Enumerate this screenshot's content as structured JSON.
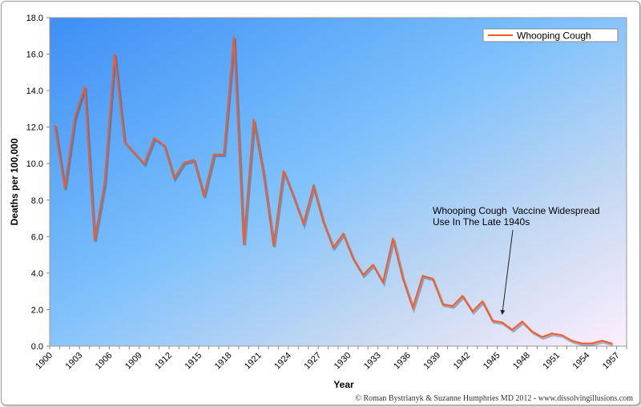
{
  "chart_data": {
    "type": "line",
    "title": "",
    "xlabel": "Year",
    "ylabel": "Deaths per 100,000",
    "ylim": [
      0,
      18
    ],
    "yticks": [
      "0.0",
      "2.0",
      "4.0",
      "6.0",
      "8.0",
      "10.0",
      "12.0",
      "14.0",
      "16.0",
      "18.0"
    ],
    "xtick_labels": [
      "1900",
      "1903",
      "1906",
      "1909",
      "1912",
      "1915",
      "1918",
      "1921",
      "1924",
      "1927",
      "1930",
      "1933",
      "1936",
      "1939",
      "1942",
      "1945",
      "1948",
      "1951",
      "1954",
      "1957"
    ],
    "category_range": [
      1900,
      1957
    ],
    "grid": false,
    "legend": "top-right",
    "series": [
      {
        "name": "Whooping Cough",
        "color": "#ff5a1e",
        "x": [
          1900,
          1901,
          1902,
          1903,
          1904,
          1905,
          1906,
          1907,
          1908,
          1909,
          1910,
          1911,
          1912,
          1913,
          1914,
          1915,
          1916,
          1917,
          1918,
          1919,
          1920,
          1921,
          1922,
          1923,
          1924,
          1925,
          1926,
          1927,
          1928,
          1929,
          1930,
          1931,
          1932,
          1933,
          1934,
          1935,
          1936,
          1937,
          1938,
          1939,
          1940,
          1941,
          1942,
          1943,
          1944,
          1945,
          1946,
          1947,
          1948,
          1949,
          1950,
          1951,
          1952,
          1953,
          1954,
          1955,
          1956
        ],
        "values": [
          12.1,
          8.65,
          12.5,
          14.2,
          5.8,
          8.9,
          16.0,
          11.2,
          10.6,
          10.0,
          11.4,
          11.0,
          9.2,
          10.05,
          10.2,
          8.2,
          10.5,
          10.5,
          16.95,
          5.6,
          12.4,
          9.4,
          5.5,
          9.6,
          8.2,
          6.7,
          8.75,
          6.8,
          5.4,
          6.15,
          4.8,
          3.9,
          4.45,
          3.5,
          5.9,
          3.7,
          2.1,
          3.85,
          3.7,
          2.3,
          2.2,
          2.75,
          1.9,
          2.45,
          1.4,
          1.3,
          0.9,
          1.35,
          0.8,
          0.5,
          0.7,
          0.6,
          0.3,
          0.15,
          0.15,
          0.3,
          0.15
        ]
      }
    ],
    "annotation": {
      "lines": [
        "Whooping Cough  Vaccine Widespread",
        "Use In The Late 1940s"
      ],
      "points_to_year": 1945
    }
  },
  "credit": "© Roman Bystrianyk & Suzanne Humphries MD 2012 - www.dissolvingillusions.com"
}
